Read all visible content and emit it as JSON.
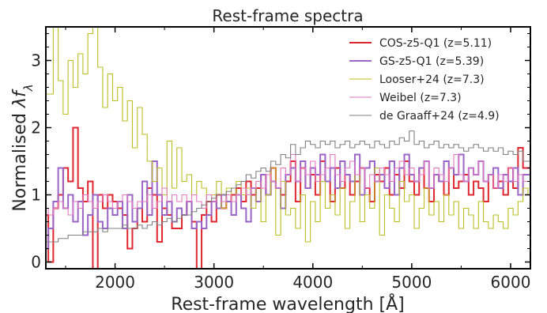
{
  "chart_data": {
    "type": "line",
    "drawstyle": "steps",
    "title": "Rest-frame spectra",
    "xlabel": "Rest-frame wavelength [Å]",
    "ylabel": "Normalised λf_λ",
    "ylabel_parts": {
      "main": "Normalised ",
      "sym": "λf",
      "sub": "λ"
    },
    "xlim": [
      1300,
      6200
    ],
    "ylim": [
      -0.1,
      3.5
    ],
    "x_ticks": [
      2000,
      3000,
      4000,
      5000,
      6000
    ],
    "x_tick_labels": [
      "2000",
      "3000",
      "4000",
      "5000",
      "6000"
    ],
    "y_ticks": [
      0,
      1,
      2,
      3
    ],
    "y_tick_labels": [
      "0",
      "1",
      "2",
      "3"
    ],
    "grid": false,
    "legend_position": "top-right",
    "series": [
      {
        "name": "COS-z5-Q1 (z=5.11)",
        "color": "#e0262f",
        "stroke_width": 2,
        "x": [
          1300,
          1350,
          1400,
          1450,
          1500,
          1550,
          1600,
          1650,
          1700,
          1750,
          1800,
          1850,
          1900,
          1950,
          2000,
          2050,
          2100,
          2150,
          2200,
          2250,
          2300,
          2350,
          2400,
          2450,
          2500,
          2550,
          2600,
          2650,
          2700,
          2750,
          2800,
          2850,
          2900,
          2950,
          3000,
          3050,
          3100,
          3150,
          3200,
          3250,
          3300,
          3350,
          3400,
          3450,
          3500,
          3550,
          3600,
          3650,
          3700,
          3750,
          3800,
          3850,
          3900,
          3950,
          4000,
          4050,
          4100,
          4150,
          4200,
          4250,
          4300,
          4350,
          4400,
          4450,
          4500,
          4550,
          4600,
          4650,
          4700,
          4750,
          4800,
          4850,
          4900,
          4950,
          5000,
          5050,
          5100,
          5150,
          5200,
          5250,
          5300,
          5350,
          5400,
          5450,
          5500,
          5550,
          5600,
          5650,
          5700,
          5750,
          5800,
          5850,
          5900,
          5950,
          6000,
          6050,
          6100,
          6150,
          6200
        ],
        "y": [
          0.7,
          0.0,
          0.8,
          1.0,
          1.4,
          1.2,
          2.0,
          1.1,
          0.9,
          1.2,
          -0.1,
          1.0,
          0.8,
          1.0,
          0.9,
          0.8,
          0.7,
          0.2,
          0.5,
          0.8,
          0.6,
          1.1,
          1.0,
          0.3,
          0.8,
          0.7,
          0.5,
          0.5,
          0.7,
          0.9,
          0.6,
          -0.1,
          0.7,
          0.9,
          0.6,
          1.0,
          0.8,
          0.9,
          1.0,
          1.1,
          0.9,
          1.2,
          1.0,
          1.1,
          1.3,
          1.0,
          1.4,
          1.1,
          1.0,
          1.2,
          1.5,
          0.9,
          1.4,
          1.1,
          1.3,
          1.0,
          1.5,
          1.2,
          0.9,
          1.4,
          1.1,
          1.3,
          1.0,
          1.2,
          1.4,
          1.1,
          0.9,
          1.3,
          1.2,
          1.4,
          1.0,
          1.3,
          1.1,
          1.5,
          1.2,
          1.0,
          1.4,
          1.1,
          0.9,
          1.3,
          1.2,
          1.0,
          1.4,
          1.1,
          1.2,
          1.3,
          1.0,
          1.2,
          1.1,
          0.9,
          1.3,
          1.1,
          1.2,
          1.0,
          1.4,
          1.1,
          1.7,
          1.4,
          1.4
        ]
      },
      {
        "name": "GS-z5-Q1 (z=5.39)",
        "color": "#9a65c6",
        "stroke_width": 2,
        "x": [
          1300,
          1350,
          1400,
          1450,
          1500,
          1550,
          1600,
          1650,
          1700,
          1750,
          1800,
          1850,
          1900,
          1950,
          2000,
          2050,
          2100,
          2150,
          2200,
          2250,
          2300,
          2350,
          2400,
          2450,
          2500,
          2550,
          2600,
          2650,
          2700,
          2750,
          2800,
          2850,
          2900,
          2950,
          3000,
          3050,
          3100,
          3150,
          3200,
          3250,
          3300,
          3350,
          3400,
          3450,
          3500,
          3550,
          3600,
          3650,
          3700,
          3750,
          3800,
          3850,
          3900,
          3950,
          4000,
          4050,
          4100,
          4150,
          4200,
          4250,
          4300,
          4350,
          4400,
          4450,
          4500,
          4550,
          4600,
          4650,
          4700,
          4750,
          4800,
          4850,
          4900,
          4950,
          5000,
          5050,
          5100,
          5150,
          5200,
          5250,
          5300,
          5350,
          5400,
          5450,
          5500,
          5550,
          5600,
          5650,
          5700,
          5750,
          5800,
          5850,
          5900,
          5950,
          6000,
          6050,
          6100,
          6150,
          6200
        ],
        "y": [
          0.2,
          0.5,
          0.9,
          1.4,
          0.8,
          1.0,
          0.6,
          0.9,
          0.4,
          0.7,
          1.0,
          0.6,
          0.5,
          0.8,
          0.7,
          0.9,
          0.5,
          1.0,
          0.6,
          0.8,
          1.2,
          0.7,
          1.5,
          1.0,
          0.7,
          0.9,
          0.6,
          0.8,
          0.7,
          0.9,
          0.5,
          0.6,
          0.5,
          0.7,
          0.9,
          0.8,
          1.0,
          0.9,
          0.7,
          1.0,
          0.8,
          0.6,
          1.1,
          0.9,
          1.3,
          1.0,
          1.2,
          1.1,
          0.8,
          1.3,
          1.4,
          1.2,
          1.5,
          1.1,
          1.4,
          1.3,
          1.6,
          1.2,
          1.4,
          1.1,
          1.5,
          1.3,
          1.2,
          1.6,
          1.0,
          1.4,
          1.5,
          1.2,
          1.3,
          1.1,
          1.5,
          1.0,
          1.4,
          1.6,
          1.3,
          1.2,
          1.4,
          1.5,
          1.1,
          1.3,
          1.2,
          1.5,
          1.4,
          1.3,
          1.6,
          1.2,
          1.4,
          1.3,
          1.5,
          1.2,
          1.3,
          1.4,
          1.1,
          1.3,
          1.2,
          1.4,
          1.0,
          1.3,
          1.3
        ]
      },
      {
        "name": "Looser+24 (z=7.3)",
        "color": "#bcbd22",
        "stroke_width": 1.1,
        "x": [
          1300,
          1350,
          1400,
          1450,
          1500,
          1550,
          1600,
          1650,
          1700,
          1750,
          1800,
          1850,
          1900,
          1950,
          2000,
          2050,
          2100,
          2150,
          2200,
          2250,
          2300,
          2350,
          2400,
          2450,
          2500,
          2550,
          2600,
          2650,
          2700,
          2750,
          2800,
          2850,
          2900,
          2950,
          3000,
          3050,
          3100,
          3150,
          3200,
          3250,
          3300,
          3350,
          3400,
          3450,
          3500,
          3550,
          3600,
          3650,
          3700,
          3750,
          3800,
          3850,
          3900,
          3950,
          4000,
          4050,
          4100,
          4150,
          4200,
          4250,
          4300,
          4350,
          4400,
          4450,
          4500,
          4550,
          4600,
          4650,
          4700,
          4750,
          4800,
          4850,
          4900,
          4950,
          5000,
          5050,
          5100,
          5150,
          5200,
          5250,
          5300,
          5350,
          5400,
          5450,
          5500,
          5550,
          5600,
          5650,
          5700,
          5750,
          5800,
          5850,
          5900,
          5950,
          6000,
          6050,
          6100,
          6150,
          6200
        ],
        "y": [
          2.5,
          2.5,
          3.5,
          2.7,
          2.2,
          3.0,
          2.6,
          3.1,
          2.8,
          3.4,
          3.5,
          2.9,
          2.3,
          2.8,
          2.4,
          2.6,
          2.1,
          2.4,
          1.7,
          2.3,
          1.9,
          1.5,
          1.2,
          1.4,
          1.0,
          1.8,
          1.1,
          1.7,
          1.2,
          1.3,
          1.0,
          1.2,
          1.1,
          0.9,
          1.0,
          1.2,
          0.8,
          1.1,
          0.9,
          1.2,
          1.0,
          1.1,
          0.8,
          1.2,
          0.6,
          1.0,
          1.4,
          0.4,
          1.2,
          0.7,
          0.8,
          0.5,
          1.0,
          0.3,
          0.9,
          0.6,
          1.2,
          0.8,
          1.0,
          0.7,
          1.1,
          0.5,
          0.9,
          1.3,
          0.6,
          1.0,
          0.8,
          1.4,
          0.4,
          1.0,
          0.8,
          0.6,
          1.2,
          0.9,
          1.0,
          0.5,
          0.8,
          1.1,
          0.7,
          0.9,
          0.6,
          1.0,
          0.7,
          0.9,
          0.5,
          0.8,
          0.7,
          0.5,
          0.9,
          0.6,
          0.5,
          0.7,
          0.6,
          0.5,
          0.8,
          0.7,
          0.9,
          1.1,
          1.0
        ]
      },
      {
        "name": "Weibel (z=7.3)",
        "color": "#e377c2",
        "stroke_width": 1.1,
        "x": [
          1300,
          1350,
          1400,
          1450,
          1500,
          1550,
          1600,
          1650,
          1700,
          1750,
          1800,
          1850,
          1900,
          1950,
          2000,
          2050,
          2100,
          2150,
          2200,
          2250,
          2300,
          2350,
          2400,
          2450,
          2500,
          2550,
          2600,
          2650,
          2700,
          2750,
          2800,
          2850,
          2900,
          2950,
          3000,
          3050,
          3100,
          3150,
          3200,
          3250,
          3300,
          3350,
          3400,
          3450,
          3500,
          3550,
          3600,
          3650,
          3700,
          3750,
          3800,
          3850,
          3900,
          3950,
          4000,
          4050,
          4100,
          4150,
          4200,
          4250,
          4300,
          4350,
          4400,
          4450,
          4500,
          4550,
          4600,
          4650,
          4700,
          4750,
          4800,
          4850,
          4900,
          4950,
          5000,
          5050,
          5100,
          5150,
          5200,
          5250,
          5300,
          5350,
          5400,
          5450,
          5500,
          5550,
          5600,
          5650,
          5700,
          5750,
          5800,
          5850,
          5900,
          5950,
          6000,
          6050,
          6100,
          6150,
          6200
        ],
        "y": [
          0.8,
          0.7,
          0.8,
          0.9,
          0.8,
          0.7,
          0.9,
          0.8,
          1.0,
          0.9,
          0.8,
          0.9,
          1.0,
          0.9,
          0.8,
          0.9,
          1.0,
          0.9,
          0.8,
          0.9,
          0.9,
          1.0,
          0.8,
          0.9,
          1.1,
          0.9,
          1.0,
          0.9,
          1.0,
          0.9,
          1.0,
          0.9,
          0.8,
          1.0,
          0.9,
          1.0,
          0.9,
          1.0,
          0.9,
          1.0,
          1.1,
          1.0,
          1.1,
          1.2,
          1.1,
          1.3,
          1.2,
          1.1,
          1.4,
          1.3,
          1.6,
          1.2,
          1.4,
          1.3,
          1.5,
          1.2,
          1.3,
          1.4,
          1.6,
          1.3,
          1.2,
          1.4,
          1.5,
          1.3,
          1.4,
          1.1,
          1.3,
          1.2,
          1.4,
          1.3,
          1.2,
          1.4,
          1.5,
          1.3,
          1.4,
          1.2,
          1.3,
          1.5,
          1.1,
          1.4,
          1.3,
          1.2,
          1.4,
          1.6,
          1.3,
          1.2,
          1.4,
          1.3,
          1.5,
          1.2,
          1.3,
          1.1,
          1.3,
          1.2,
          1.4,
          1.2,
          1.3,
          1.2,
          1.2
        ]
      },
      {
        "name": "de Graaff+24 (z=4.9)",
        "color": "#7f7f7f",
        "stroke_width": 1.1,
        "x": [
          1300,
          1350,
          1400,
          1450,
          1500,
          1550,
          1600,
          1650,
          1700,
          1750,
          1800,
          1850,
          1900,
          1950,
          2000,
          2050,
          2100,
          2150,
          2200,
          2250,
          2300,
          2350,
          2400,
          2450,
          2500,
          2550,
          2600,
          2650,
          2700,
          2750,
          2800,
          2850,
          2900,
          2950,
          3000,
          3050,
          3100,
          3150,
          3200,
          3250,
          3300,
          3350,
          3400,
          3450,
          3500,
          3550,
          3600,
          3650,
          3700,
          3750,
          3800,
          3850,
          3900,
          3950,
          4000,
          4050,
          4100,
          4150,
          4200,
          4250,
          4300,
          4350,
          4400,
          4450,
          4500,
          4550,
          4600,
          4650,
          4700,
          4750,
          4800,
          4850,
          4900,
          4950,
          5000,
          5050,
          5100,
          5150,
          5200,
          5250,
          5300,
          5350,
          5400,
          5450,
          5500,
          5550,
          5600,
          5650,
          5700,
          5750,
          5800,
          5850,
          5900,
          5950,
          6000,
          6050,
          6100,
          6150,
          6200
        ],
        "y": [
          0.3,
          0.3,
          0.3,
          0.35,
          0.35,
          0.4,
          0.4,
          0.4,
          0.45,
          0.45,
          0.45,
          0.5,
          0.45,
          0.5,
          0.5,
          0.5,
          0.55,
          0.5,
          0.5,
          0.55,
          0.5,
          0.55,
          0.6,
          0.55,
          0.6,
          0.65,
          0.6,
          0.65,
          0.7,
          0.7,
          0.75,
          0.8,
          0.85,
          0.9,
          0.95,
          1.0,
          1.0,
          1.05,
          1.1,
          1.15,
          1.2,
          1.3,
          1.25,
          1.35,
          1.4,
          1.35,
          1.5,
          1.45,
          1.6,
          1.55,
          1.75,
          1.6,
          1.7,
          1.8,
          1.75,
          1.7,
          1.8,
          1.75,
          1.8,
          1.7,
          1.75,
          1.8,
          1.7,
          1.75,
          1.8,
          1.75,
          1.7,
          1.8,
          1.75,
          1.7,
          1.8,
          1.75,
          1.85,
          1.8,
          1.95,
          1.75,
          1.8,
          1.7,
          1.75,
          1.8,
          1.7,
          1.75,
          1.7,
          1.75,
          1.7,
          1.65,
          1.7,
          1.75,
          1.7,
          1.65,
          1.7,
          1.65,
          1.7,
          1.6,
          1.65,
          1.6,
          1.65,
          1.5,
          1.5
        ]
      }
    ]
  }
}
